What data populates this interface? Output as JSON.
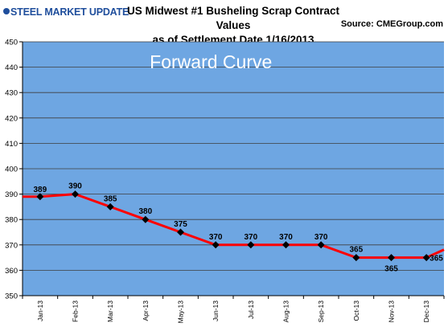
{
  "header": {
    "logo_text_a": "STEEL MARKET",
    "logo_text_b": "UPDATE",
    "title_line1": "US Midwest #1 Busheling Scrap Contract Values",
    "title_line2": "as of Settlement Date 1/16/2013",
    "source_label": "Source:",
    "source_value": "CMEGroup.com"
  },
  "colors": {
    "plot_background": "#6ea6e2",
    "line": "#ff0000",
    "marker": "#000000",
    "gridline": "#3e3e3e",
    "logo": "#1f4e9c"
  },
  "chart_data": {
    "type": "line",
    "title": "US Midwest #1 Busheling Scrap Contract Values as of Settlement Date 1/16/2013",
    "annotation": "Forward Curve",
    "categories": [
      "Jan-13",
      "Feb-13",
      "Mar-13",
      "Apr-13",
      "May-13",
      "Jun-13",
      "Jul-13",
      "Aug-13",
      "Sep-13",
      "Oct-13",
      "Nov-13",
      "Dec-13"
    ],
    "series": [
      {
        "values": [
          389,
          390,
          385,
          380,
          375,
          370,
          370,
          370,
          370,
          365,
          365,
          365
        ],
        "data_labels": [
          "389",
          "390",
          "385",
          "380",
          "375",
          "370",
          "370",
          "370",
          "370",
          "365",
          "365",
          "365"
        ]
      }
    ],
    "ylim": [
      350,
      450
    ],
    "yticks": [
      350,
      360,
      370,
      380,
      390,
      400,
      410,
      420,
      430,
      440,
      450
    ],
    "grid": true,
    "legend": "none",
    "line_extends_beyond_axis": true,
    "xlabel": "",
    "ylabel": ""
  }
}
